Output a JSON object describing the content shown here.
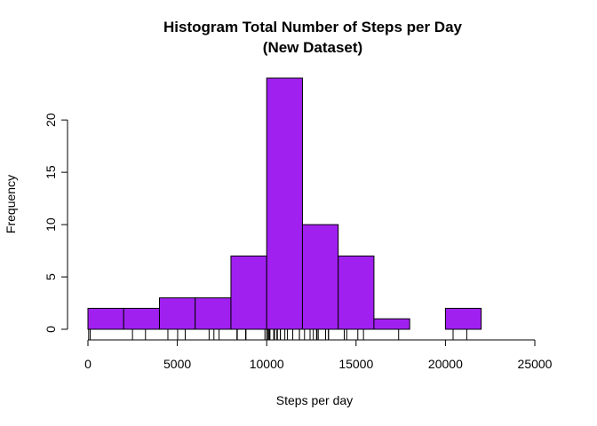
{
  "chart_data": {
    "type": "bar",
    "title": "Histogram Total Number of Steps per Day",
    "subtitle": "(New Dataset)",
    "xlabel": "Steps per day",
    "ylabel": "Frequency",
    "bar_color": "#A020F0",
    "bins": [
      {
        "from": 0,
        "to": 2000,
        "count": 2
      },
      {
        "from": 2000,
        "to": 4000,
        "count": 2
      },
      {
        "from": 4000,
        "to": 6000,
        "count": 3
      },
      {
        "from": 6000,
        "to": 8000,
        "count": 3
      },
      {
        "from": 8000,
        "to": 10000,
        "count": 7
      },
      {
        "from": 10000,
        "to": 12000,
        "count": 24
      },
      {
        "from": 12000,
        "to": 14000,
        "count": 10
      },
      {
        "from": 14000,
        "to": 16000,
        "count": 7
      },
      {
        "from": 16000,
        "to": 18000,
        "count": 1
      },
      {
        "from": 18000,
        "to": 20000,
        "count": 0
      },
      {
        "from": 20000,
        "to": 22000,
        "count": 2
      }
    ],
    "xlim": [
      0,
      25000
    ],
    "ylim": [
      0,
      24
    ],
    "x_ticks": [
      0,
      5000,
      10000,
      15000,
      20000,
      25000
    ],
    "y_ticks": [
      0,
      5,
      10,
      15,
      20
    ],
    "rug": [
      41,
      126,
      2492,
      3219,
      4472,
      5018,
      5441,
      6778,
      7047,
      7336,
      8334,
      8355,
      8821,
      8841,
      9900,
      10000,
      10056,
      10119,
      10139,
      10183,
      10395,
      10439,
      10571,
      10600,
      10765,
      10766,
      11015,
      11162,
      11458,
      11829,
      11834,
      12116,
      12426,
      12608,
      12787,
      12811,
      12883,
      13294,
      13452,
      13460,
      14339,
      14478,
      15098,
      15414,
      17382,
      20427,
      21194
    ]
  }
}
